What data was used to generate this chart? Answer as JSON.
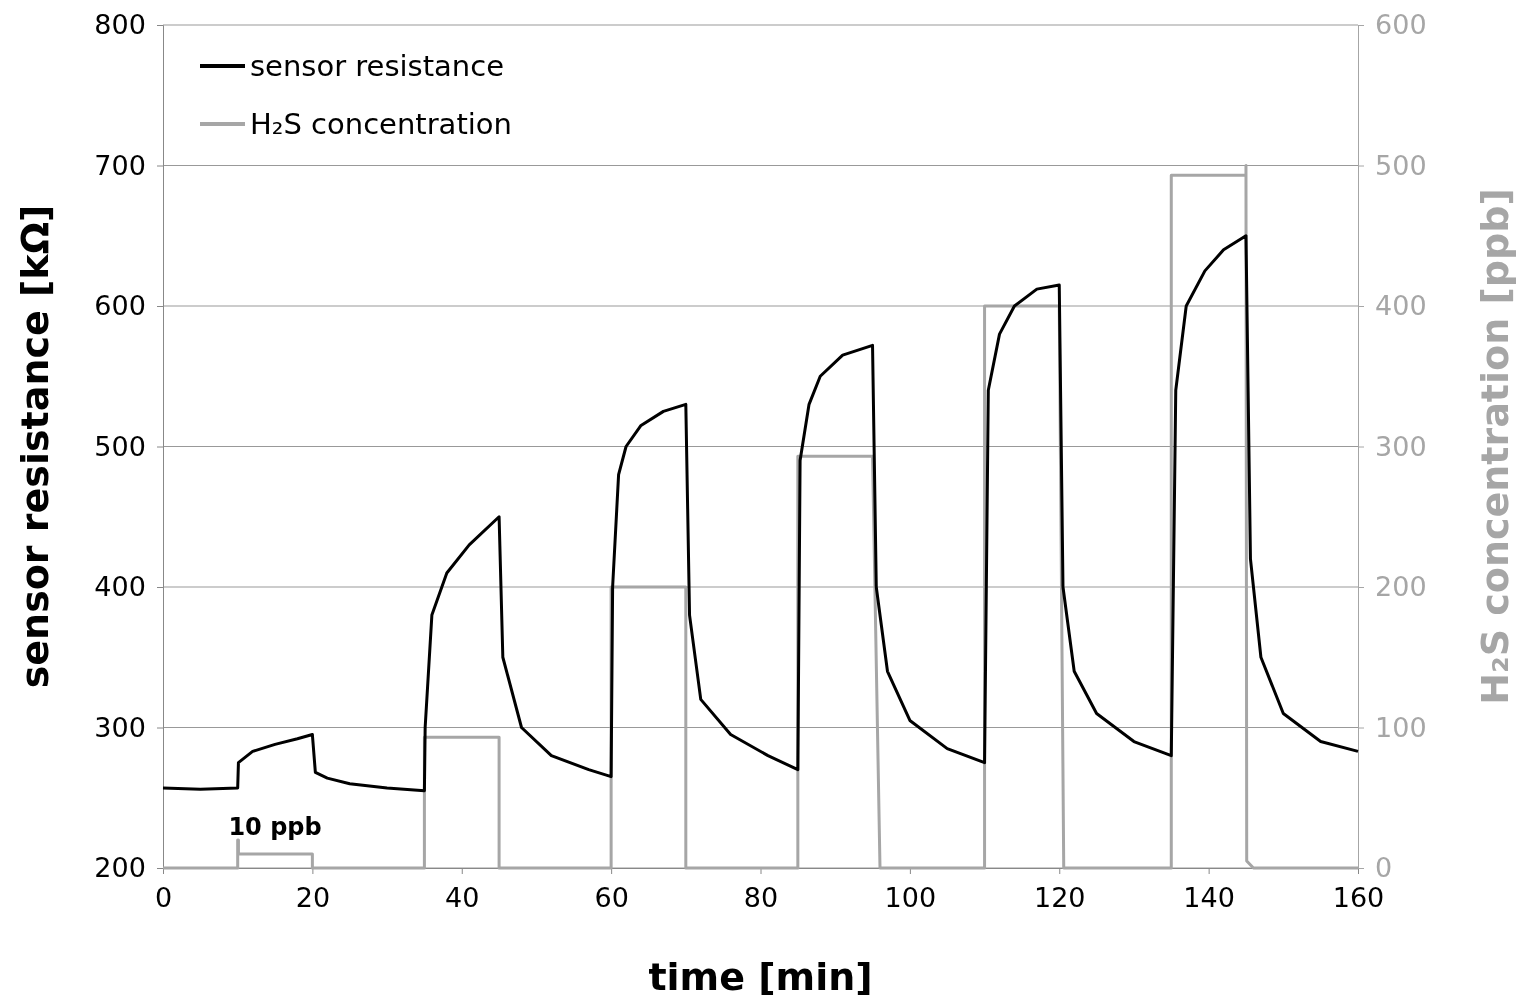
{
  "chart_data": {
    "type": "line",
    "xlabel": "time [min]",
    "ylabel": "sensor resistance [kΩ]",
    "y2label": "H₂S concentration [ppb]",
    "xlim": [
      0,
      160
    ],
    "xticks": [
      0,
      20,
      40,
      60,
      80,
      100,
      120,
      140,
      160
    ],
    "ylim": [
      200,
      800
    ],
    "yticks": [
      200,
      300,
      400,
      500,
      600,
      700,
      800
    ],
    "y2lim": [
      0,
      600
    ],
    "y2ticks": [
      0,
      100,
      200,
      300,
      400,
      500,
      600
    ],
    "grid": "y",
    "legend": "top left",
    "line_style": "solid",
    "annotations": [
      "10 ppb"
    ],
    "series": [
      {
        "name": "sensor resistance",
        "color": "#000000",
        "x": [
          0,
          5,
          10,
          10.1,
          12,
          15,
          18,
          20,
          20.4,
          22,
          25,
          30,
          35,
          35.1,
          36,
          38,
          41,
          45,
          45.5,
          48,
          52,
          57,
          60,
          60.2,
          61,
          62,
          64,
          67,
          70,
          70.5,
          72,
          76,
          81,
          85,
          85.3,
          86.5,
          88,
          91,
          95,
          95.5,
          97,
          100,
          105,
          110,
          110.5,
          112,
          114,
          117,
          120,
          120.5,
          122,
          125,
          130,
          135,
          135.6,
          137,
          139.5,
          142,
          145,
          145.6,
          147,
          150,
          155,
          160
        ],
        "values": [
          257,
          256,
          257,
          275,
          283,
          288,
          292,
          295,
          268,
          264,
          260,
          257,
          255,
          300,
          380,
          410,
          430,
          450,
          350,
          300,
          280,
          270,
          265,
          400,
          480,
          500,
          515,
          525,
          530,
          380,
          320,
          295,
          280,
          270,
          490,
          530,
          550,
          565,
          572,
          400,
          340,
          305,
          285,
          275,
          540,
          580,
          600,
          612,
          615,
          400,
          340,
          310,
          290,
          280,
          540,
          600,
          625,
          640,
          650,
          420,
          350,
          310,
          290,
          283
        ]
      },
      {
        "name": "H₂S concentration",
        "color": "#a6a6a6",
        "axis": "y2",
        "x": [
          0,
          10,
          10,
          10.1,
          10.1,
          20,
          20,
          35,
          35,
          45,
          45,
          60,
          60,
          70,
          70,
          85,
          85,
          95,
          96,
          110,
          110,
          120,
          120.6,
          135,
          135,
          145,
          145,
          145.1,
          146,
          160
        ],
        "values": [
          0,
          0,
          20,
          20,
          10,
          10,
          0,
          0,
          93,
          93,
          0,
          0,
          200,
          200,
          0,
          0,
          293,
          293,
          0,
          0,
          400,
          400,
          0,
          0,
          493,
          493,
          500,
          5,
          0,
          0
        ]
      }
    ]
  }
}
